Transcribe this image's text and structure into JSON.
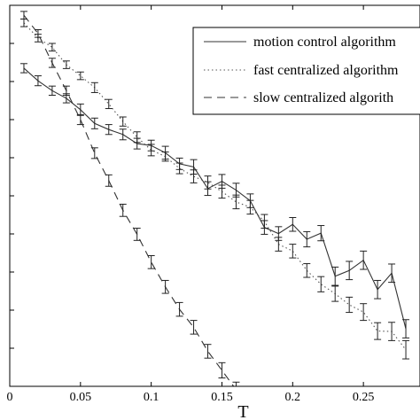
{
  "chart_data": {
    "type": "line",
    "title": "",
    "xlabel": "T",
    "ylabel": "",
    "xlim": [
      0,
      0.29
    ],
    "ylim": [
      0,
      100
    ],
    "x_ticks": [
      "0",
      "0.05",
      "0.1",
      "0.15",
      "0.2",
      "0.25"
    ],
    "x_tick_values": [
      0,
      0.05,
      0.1,
      0.15,
      0.2,
      0.25
    ],
    "y_tick_values": [
      0,
      10,
      20,
      30,
      40,
      50,
      60,
      70,
      80,
      90
    ],
    "y_tick_labels_visible": false,
    "grid": false,
    "legend_position": "top-right",
    "series": [
      {
        "name": "motion control algorithm",
        "style": "solid",
        "color": "#333333",
        "x": [
          0.01,
          0.02,
          0.03,
          0.04,
          0.05,
          0.06,
          0.07,
          0.08,
          0.09,
          0.1,
          0.11,
          0.12,
          0.13,
          0.14,
          0.15,
          0.16,
          0.17,
          0.18,
          0.19,
          0.2,
          0.21,
          0.22,
          0.23,
          0.24,
          0.25,
          0.26,
          0.27,
          0.28
        ],
        "y": [
          83.5,
          80.2,
          77.6,
          75.6,
          72.6,
          69.0,
          67.4,
          66.1,
          63.7,
          63.2,
          61.3,
          58.4,
          57.6,
          51.9,
          53.8,
          51.5,
          48.7,
          41.7,
          40.1,
          42.5,
          38.6,
          40.2,
          28.9,
          30.4,
          33.1,
          25.4,
          29.7,
          15.1
        ],
        "err": [
          1.2,
          1.3,
          1.2,
          1.2,
          1.5,
          1.4,
          1.3,
          1.4,
          1.4,
          1.4,
          1.7,
          1.5,
          1.9,
          1.8,
          1.8,
          1.8,
          1.8,
          1.8,
          1.8,
          1.8,
          2.0,
          2.0,
          2.4,
          2.4,
          2.4,
          2.4,
          2.4,
          2.4
        ]
      },
      {
        "name": "fast centralized algorithm",
        "style": "dotted",
        "color": "#555555",
        "x": [
          0.01,
          0.02,
          0.03,
          0.04,
          0.05,
          0.06,
          0.07,
          0.08,
          0.09,
          0.1,
          0.11,
          0.12,
          0.13,
          0.14,
          0.15,
          0.16,
          0.17,
          0.18,
          0.19,
          0.2,
          0.21,
          0.22,
          0.23,
          0.24,
          0.25,
          0.26,
          0.27,
          0.28
        ],
        "y": [
          95.4,
          91.4,
          89.0,
          84.4,
          81.5,
          78.4,
          74.1,
          69.5,
          65.4,
          62.0,
          60.3,
          57.2,
          55.1,
          53.5,
          51.1,
          48.4,
          47.0,
          43.3,
          37.3,
          35.5,
          30.4,
          26.8,
          24.3,
          21.4,
          19.5,
          14.5,
          14.4,
          9.6
        ],
        "err": [
          1.0,
          1.0,
          1.0,
          1.0,
          1.0,
          1.3,
          1.2,
          1.2,
          1.4,
          1.5,
          1.2,
          1.4,
          1.7,
          1.7,
          1.7,
          1.8,
          1.8,
          1.8,
          1.8,
          1.8,
          1.8,
          2.0,
          2.0,
          2.0,
          2.2,
          2.2,
          2.4,
          2.4
        ]
      },
      {
        "name": "slow centralized algorith",
        "style": "dashed",
        "color": "#333333",
        "x": [
          0.01,
          0.02,
          0.03,
          0.04,
          0.05,
          0.06,
          0.07,
          0.08,
          0.09,
          0.1,
          0.11,
          0.12,
          0.13,
          0.14,
          0.15,
          0.16,
          0.17
        ],
        "y": [
          97.4,
          92.6,
          84.9,
          77.6,
          70.0,
          61.2,
          54.0,
          46.2,
          39.9,
          32.6,
          26.1,
          20.2,
          15.5,
          9.2,
          4.2,
          -0.9,
          -4.0
        ],
        "err": [
          1.0,
          1.0,
          1.2,
          1.2,
          1.3,
          1.4,
          1.5,
          1.6,
          1.6,
          1.7,
          1.7,
          1.8,
          1.8,
          1.8,
          2.0,
          2.0,
          2.0
        ]
      }
    ]
  }
}
